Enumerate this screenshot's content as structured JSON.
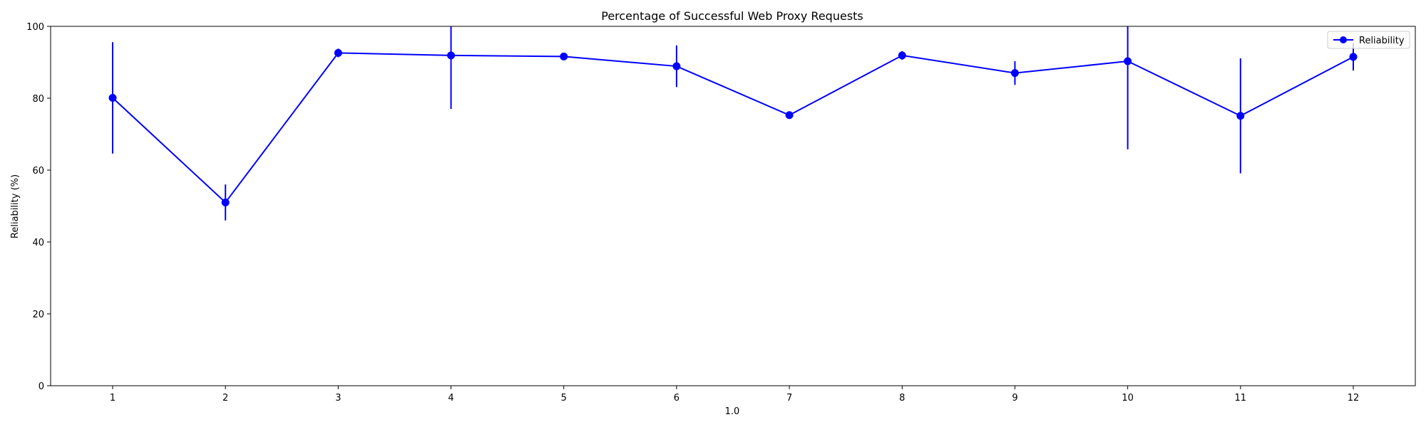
{
  "chart_data": {
    "type": "line",
    "title": "Percentage of Successful Web Proxy Requests",
    "xlabel": "1.0",
    "ylabel": "Reliability (%)",
    "x": [
      1,
      2,
      3,
      4,
      5,
      6,
      7,
      8,
      9,
      10,
      11,
      12
    ],
    "xlim": [
      0.45,
      12.55
    ],
    "ylim": [
      0,
      100
    ],
    "xticks": [
      1,
      2,
      3,
      4,
      5,
      6,
      7,
      8,
      9,
      10,
      11,
      12
    ],
    "yticks": [
      0,
      20,
      40,
      60,
      80,
      100
    ],
    "grid": false,
    "legend_position": "top-right",
    "series": [
      {
        "name": "Reliability",
        "color": "#0000ff",
        "marker": "circle",
        "values": [
          80.1,
          51.0,
          92.6,
          91.9,
          91.6,
          88.9,
          75.3,
          91.9,
          87.0,
          90.3,
          75.1,
          91.5
        ],
        "errors": [
          15.5,
          5.0,
          1.2,
          14.9,
          0.9,
          5.8,
          0.5,
          1.2,
          3.3,
          24.5,
          16.0,
          3.8
        ]
      }
    ]
  }
}
